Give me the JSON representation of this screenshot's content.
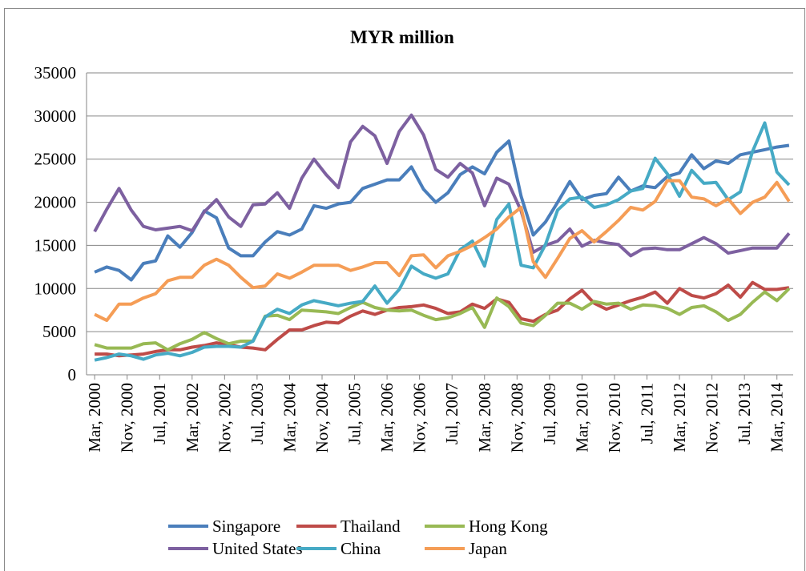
{
  "chart_data": {
    "type": "line",
    "title": "MYR million",
    "x": [
      "2000-03",
      "2000-06",
      "2000-09",
      "2000-12",
      "2001-03",
      "2001-06",
      "2001-09",
      "2001-12",
      "2002-03",
      "2002-06",
      "2002-09",
      "2002-12",
      "2003-03",
      "2003-06",
      "2003-09",
      "2003-12",
      "2004-03",
      "2004-06",
      "2004-09",
      "2004-12",
      "2005-03",
      "2005-06",
      "2005-09",
      "2005-12",
      "2006-03",
      "2006-06",
      "2006-09",
      "2006-12",
      "2007-03",
      "2007-06",
      "2007-09",
      "2007-12",
      "2008-03",
      "2008-06",
      "2008-09",
      "2008-12",
      "2009-03",
      "2009-06",
      "2009-09",
      "2009-12",
      "2010-03",
      "2010-06",
      "2010-09",
      "2010-12",
      "2011-03",
      "2011-06",
      "2011-09",
      "2011-12",
      "2012-03",
      "2012-06",
      "2012-09",
      "2012-12",
      "2013-03",
      "2013-06",
      "2013-09",
      "2013-12",
      "2014-03",
      "2014-06"
    ],
    "xlim": [
      "2000-01",
      "2014-07"
    ],
    "xticks": [
      {
        "value": "2000-03",
        "label": "Mar, 2000"
      },
      {
        "value": "2000-11",
        "label": "Nov, 2000"
      },
      {
        "value": "2001-07",
        "label": "Jul, 2001"
      },
      {
        "value": "2002-03",
        "label": "Mar, 2002"
      },
      {
        "value": "2002-11",
        "label": "Nov, 2002"
      },
      {
        "value": "2003-07",
        "label": "Jul, 2003"
      },
      {
        "value": "2004-03",
        "label": "Mar, 2004"
      },
      {
        "value": "2004-11",
        "label": "Nov, 2004"
      },
      {
        "value": "2005-07",
        "label": "Jul, 2005"
      },
      {
        "value": "2006-03",
        "label": "Mar, 2006"
      },
      {
        "value": "2006-11",
        "label": "Nov, 2006"
      },
      {
        "value": "2007-07",
        "label": "Jul, 2007"
      },
      {
        "value": "2008-03",
        "label": "Mar, 2008"
      },
      {
        "value": "2008-11",
        "label": "Nov, 2008"
      },
      {
        "value": "2009-07",
        "label": "Jul, 2009"
      },
      {
        "value": "2010-03",
        "label": "Mar, 2010"
      },
      {
        "value": "2010-11",
        "label": "Nov, 2010"
      },
      {
        "value": "2011-07",
        "label": "Jul, 2011"
      },
      {
        "value": "2012-03",
        "label": "Mar, 2012"
      },
      {
        "value": "2012-11",
        "label": "Nov, 2012"
      },
      {
        "value": "2013-07",
        "label": "Jul, 2013"
      },
      {
        "value": "2014-03",
        "label": "Mar, 2014"
      }
    ],
    "ylim": [
      0,
      35000
    ],
    "yticks": [
      0,
      5000,
      10000,
      15000,
      20000,
      25000,
      30000,
      35000
    ],
    "grid": true,
    "legend": "bottom",
    "series": [
      {
        "name": "Singapore",
        "color": "#4a7ebb",
        "values": [
          11900,
          12500,
          12100,
          11000,
          12900,
          13200,
          16100,
          14800,
          16500,
          19000,
          18200,
          14700,
          13800,
          13800,
          15400,
          16600,
          16200,
          16900,
          19600,
          19300,
          19800,
          20000,
          21600,
          22100,
          22600,
          22600,
          24100,
          21500,
          20000,
          21100,
          23200,
          24100,
          23300,
          25800,
          27100,
          20700,
          16200,
          17700,
          20000,
          22400,
          20300,
          20800,
          21000,
          22900,
          21300,
          21900,
          21700,
          23000,
          23400,
          25500,
          23900,
          24800,
          24500,
          25500,
          25800,
          26100,
          26400,
          26600
        ]
      },
      {
        "name": "Thailand",
        "color": "#be4b48",
        "values": [
          2400,
          2400,
          2200,
          2300,
          2400,
          2700,
          2900,
          2900,
          3200,
          3400,
          3700,
          3500,
          3200,
          3100,
          2900,
          4100,
          5200,
          5200,
          5700,
          6100,
          6000,
          6800,
          7400,
          7000,
          7500,
          7800,
          7900,
          8100,
          7700,
          7100,
          7300,
          8200,
          7700,
          8800,
          8400,
          6500,
          6200,
          7000,
          7500,
          8800,
          9800,
          8300,
          7600,
          8100,
          8600,
          9000,
          9600,
          8300,
          10000,
          9200,
          8900,
          9400,
          10400,
          9000,
          10700,
          9900,
          9900,
          10100
        ]
      },
      {
        "name": "Hong Kong",
        "color": "#98b954",
        "values": [
          3500,
          3100,
          3100,
          3100,
          3600,
          3700,
          2900,
          3600,
          4100,
          4900,
          4200,
          3600,
          3900,
          3900,
          6800,
          6900,
          6400,
          7500,
          7400,
          7300,
          7100,
          7800,
          8400,
          7800,
          7500,
          7400,
          7500,
          6900,
          6400,
          6600,
          7100,
          7800,
          5500,
          8900,
          7900,
          6000,
          5700,
          6900,
          8300,
          8300,
          7600,
          8500,
          8200,
          8300,
          7600,
          8100,
          8000,
          7700,
          7000,
          7800,
          8000,
          7300,
          6300,
          7000,
          8400,
          9600,
          8600,
          10000
        ]
      },
      {
        "name": "United States",
        "color": "#7d60a0",
        "values": [
          16600,
          19200,
          21600,
          19100,
          17200,
          16800,
          17000,
          17200,
          16700,
          18900,
          20300,
          18300,
          17200,
          19700,
          19800,
          21100,
          19300,
          22800,
          25000,
          23200,
          21700,
          27000,
          28800,
          27700,
          24500,
          28200,
          30100,
          27800,
          23800,
          22900,
          24500,
          23400,
          19600,
          22800,
          22100,
          19000,
          14200,
          15000,
          15500,
          16900,
          14900,
          15600,
          15300,
          15100,
          13800,
          14600,
          14700,
          14500,
          14500,
          15200,
          15900,
          15200,
          14100,
          14400,
          14700,
          14700,
          14700,
          16400
        ]
      },
      {
        "name": "China",
        "color": "#46aac5",
        "values": [
          1700,
          2000,
          2400,
          2200,
          1800,
          2300,
          2500,
          2200,
          2600,
          3200,
          3300,
          3300,
          3200,
          3900,
          6700,
          7600,
          7100,
          8100,
          8600,
          8300,
          8000,
          8300,
          8500,
          10300,
          8300,
          9900,
          12600,
          11700,
          11200,
          11700,
          14500,
          15500,
          12600,
          18000,
          19800,
          12700,
          12400,
          15100,
          19100,
          20400,
          20600,
          19400,
          19700,
          20300,
          21300,
          21600,
          25100,
          23300,
          20700,
          23700,
          22200,
          22300,
          20300,
          21200,
          25900,
          29200,
          23500,
          22000
        ]
      },
      {
        "name": "Japan",
        "color": "#f59d56",
        "values": [
          7000,
          6300,
          8200,
          8200,
          8900,
          9400,
          10900,
          11300,
          11300,
          12700,
          13400,
          12700,
          11300,
          10100,
          10300,
          11700,
          11200,
          11900,
          12700,
          12700,
          12700,
          12100,
          12500,
          13000,
          13000,
          11500,
          13800,
          13900,
          12400,
          13800,
          14300,
          15000,
          15900,
          16900,
          18300,
          19400,
          13100,
          11300,
          13500,
          15800,
          16700,
          15400,
          16600,
          17900,
          19400,
          19100,
          20100,
          22500,
          22500,
          20600,
          20400,
          19600,
          20400,
          18700,
          20000,
          20600,
          22300,
          20100
        ]
      }
    ]
  }
}
